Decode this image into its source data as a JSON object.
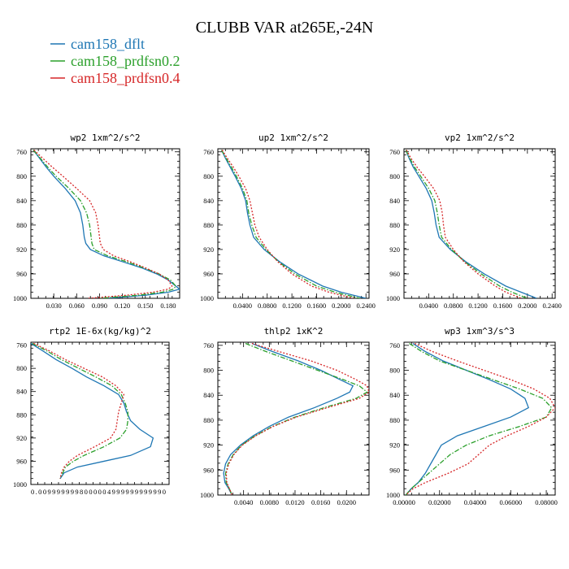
{
  "figure_title": "CLUBB VAR at265E,-24N",
  "legend": [
    {
      "label": "cam158_dflt",
      "color": "#1f77b4",
      "dash": "solid"
    },
    {
      "label": "cam158_prdfsn0.2",
      "color": "#2ca02c",
      "dash": "dashdot"
    },
    {
      "label": "cam158_prdfsn0.4",
      "color": "#d62728",
      "dash": "dot"
    }
  ],
  "chart_data": [
    {
      "type": "line",
      "title": "wp2  1xm^2/s^2",
      "xlabel": "",
      "ylabel": "",
      "xlim": [
        0.0,
        0.195
      ],
      "ylim": [
        755,
        1000
      ],
      "xticks": [
        0.03,
        0.06,
        0.09,
        0.12,
        0.15,
        0.18
      ],
      "xtick_labels": [
        "0.030",
        "0.060",
        "0.090",
        "0.120",
        "0.150",
        "0.180"
      ],
      "yticks": [
        760,
        800,
        840,
        880,
        920,
        960,
        1000
      ],
      "y": [
        757,
        770,
        785,
        800,
        820,
        840,
        860,
        880,
        900,
        910,
        920,
        930,
        940,
        950,
        960,
        970,
        980,
        985,
        990,
        995,
        1000
      ],
      "series": [
        {
          "name": "cam158_dflt",
          "x": [
            0.003,
            0.011,
            0.02,
            0.03,
            0.045,
            0.058,
            0.065,
            0.068,
            0.07,
            0.072,
            0.078,
            0.095,
            0.12,
            0.145,
            0.165,
            0.18,
            0.19,
            0.195,
            0.18,
            0.15,
            0.1
          ]
        },
        {
          "name": "cam158_prdfsn0.2",
          "x": [
            0.003,
            0.012,
            0.022,
            0.033,
            0.05,
            0.065,
            0.073,
            0.077,
            0.079,
            0.08,
            0.083,
            0.1,
            0.125,
            0.148,
            0.168,
            0.183,
            0.19,
            0.187,
            0.172,
            0.14,
            0.09
          ]
        },
        {
          "name": "cam158_prdfsn0.4",
          "x": [
            0.004,
            0.015,
            0.028,
            0.042,
            0.06,
            0.077,
            0.085,
            0.088,
            0.09,
            0.091,
            0.095,
            0.108,
            0.13,
            0.15,
            0.168,
            0.18,
            0.185,
            0.18,
            0.16,
            0.125,
            0.075
          ]
        }
      ]
    },
    {
      "type": "line",
      "title": "up2  1xm^2/s^2",
      "xlabel": "",
      "ylabel": "",
      "xlim": [
        0.0,
        0.245
      ],
      "ylim": [
        755,
        1000
      ],
      "xticks": [
        0.04,
        0.08,
        0.12,
        0.16,
        0.2,
        0.24
      ],
      "xtick_labels": [
        "0.0400",
        "0.0800",
        "0.1200",
        "0.1600",
        "0.2000",
        "0.2400"
      ],
      "yticks": [
        760,
        800,
        840,
        880,
        920,
        960,
        1000
      ],
      "y": [
        757,
        770,
        785,
        800,
        820,
        840,
        860,
        880,
        900,
        920,
        940,
        960,
        980,
        990,
        1000
      ],
      "series": [
        {
          "name": "cam158_dflt",
          "x": [
            0.006,
            0.012,
            0.02,
            0.028,
            0.038,
            0.045,
            0.048,
            0.052,
            0.058,
            0.075,
            0.1,
            0.13,
            0.17,
            0.2,
            0.24
          ]
        },
        {
          "name": "cam158_prdfsn0.2",
          "x": [
            0.006,
            0.013,
            0.022,
            0.03,
            0.04,
            0.047,
            0.05,
            0.055,
            0.062,
            0.078,
            0.098,
            0.125,
            0.16,
            0.19,
            0.23
          ]
        },
        {
          "name": "cam158_prdfsn0.4",
          "x": [
            0.007,
            0.015,
            0.025,
            0.034,
            0.045,
            0.052,
            0.056,
            0.06,
            0.067,
            0.08,
            0.097,
            0.12,
            0.152,
            0.18,
            0.22
          ]
        }
      ]
    },
    {
      "type": "line",
      "title": "vp2  1xm^2/s^2",
      "xlabel": "",
      "ylabel": "",
      "xlim": [
        0.0,
        0.245
      ],
      "ylim": [
        755,
        1000
      ],
      "xticks": [
        0.04,
        0.08,
        0.12,
        0.16,
        0.2,
        0.24
      ],
      "xtick_labels": [
        "0.0400",
        "0.0800",
        "0.1200",
        "0.1600",
        "0.2000",
        "0.2400"
      ],
      "yticks": [
        760,
        800,
        840,
        880,
        920,
        960,
        1000
      ],
      "y": [
        757,
        770,
        785,
        800,
        820,
        840,
        860,
        880,
        900,
        920,
        940,
        960,
        980,
        990,
        1000
      ],
      "series": [
        {
          "name": "cam158_dflt",
          "x": [
            0.003,
            0.008,
            0.015,
            0.024,
            0.036,
            0.045,
            0.049,
            0.052,
            0.057,
            0.075,
            0.1,
            0.13,
            0.165,
            0.19,
            0.215
          ]
        },
        {
          "name": "cam158_prdfsn0.2",
          "x": [
            0.003,
            0.009,
            0.017,
            0.027,
            0.04,
            0.05,
            0.054,
            0.057,
            0.061,
            0.077,
            0.098,
            0.125,
            0.155,
            0.175,
            0.2
          ]
        },
        {
          "name": "cam158_prdfsn0.4",
          "x": [
            0.004,
            0.011,
            0.021,
            0.033,
            0.048,
            0.058,
            0.062,
            0.064,
            0.067,
            0.08,
            0.097,
            0.12,
            0.148,
            0.165,
            0.19
          ]
        }
      ]
    },
    {
      "type": "line",
      "title": "rtp2  1E-6x(kg/kg)^2",
      "xlabel": "",
      "ylabel": "",
      "xlim": [
        0.009999,
        0.01000004
      ],
      "ylim": [
        755,
        1000
      ],
      "xticks": [
        0.009999
      ],
      "xtick_labels": [
        "0.0099999998000004999999999990"
      ],
      "yticks": [
        760,
        800,
        840,
        880,
        920,
        960,
        1000
      ],
      "y": [
        757,
        770,
        785,
        800,
        815,
        830,
        845,
        860,
        875,
        890,
        905,
        920,
        935,
        950,
        960,
        970,
        980,
        990
      ],
      "series": [
        {
          "name": "cam158_dflt",
          "x": [
            0.009999,
            0.00999909,
            0.00999919,
            0.00999931,
            0.00999942,
            0.00999955,
            0.00999966,
            0.0099997,
            0.00999972,
            0.00999975,
            0.00999982,
            0.00999992,
            0.0099999,
            0.00999975,
            0.00999955,
            0.00999935,
            0.00999925,
            0.00999922
          ]
        },
        {
          "name": "cam158_prdfsn0.2",
          "x": [
            0.00999901,
            0.00999912,
            0.00999923,
            0.00999936,
            0.00999949,
            0.00999961,
            0.00999968,
            0.00999971,
            0.00999973,
            0.00999973,
            0.00999972,
            0.00999967,
            0.00999955,
            0.0099994,
            0.00999932,
            0.00999926,
            0.00999924,
            0.00999922
          ]
        },
        {
          "name": "cam158_prdfsn0.4",
          "x": [
            0.00999902,
            0.00999914,
            0.00999926,
            0.0099994,
            0.00999954,
            0.00999964,
            0.0099997,
            0.00999968,
            0.00999966,
            0.00999965,
            0.00999964,
            0.0099996,
            0.00999948,
            0.00999935,
            0.00999929,
            0.00999925,
            0.00999923,
            0.00999922
          ]
        }
      ]
    },
    {
      "type": "line",
      "title": "thlp2  1xK^2",
      "xlabel": "",
      "ylabel": "",
      "xlim": [
        0.0,
        0.0235
      ],
      "ylim": [
        755,
        1000
      ],
      "xticks": [
        0.004,
        0.008,
        0.012,
        0.016,
        0.02
      ],
      "xtick_labels": [
        "0.0040",
        "0.0080",
        "0.0120",
        "0.0160",
        "0.0200"
      ],
      "yticks": [
        760,
        800,
        840,
        880,
        920,
        960,
        1000
      ],
      "y": [
        757,
        770,
        785,
        800,
        815,
        825,
        835,
        845,
        860,
        875,
        890,
        905,
        920,
        935,
        950,
        965,
        980,
        990,
        1000
      ],
      "series": [
        {
          "name": "cam158_dflt",
          "x": [
            0.0053,
            0.0085,
            0.0125,
            0.016,
            0.019,
            0.021,
            0.0205,
            0.0185,
            0.015,
            0.011,
            0.008,
            0.0055,
            0.0035,
            0.002,
            0.0012,
            0.0009,
            0.0011,
            0.0017,
            0.0022
          ]
        },
        {
          "name": "cam158_prdfsn0.2",
          "x": [
            0.0043,
            0.0075,
            0.0115,
            0.0155,
            0.0195,
            0.022,
            0.0232,
            0.0215,
            0.0165,
            0.012,
            0.0085,
            0.0058,
            0.0037,
            0.0024,
            0.0016,
            0.0012,
            0.0013,
            0.0018,
            0.0022
          ]
        },
        {
          "name": "cam158_prdfsn0.4",
          "x": [
            0.0053,
            0.0095,
            0.0145,
            0.0185,
            0.0215,
            0.0232,
            0.0235,
            0.022,
            0.017,
            0.0122,
            0.0086,
            0.0059,
            0.0038,
            0.0025,
            0.0017,
            0.0013,
            0.0014,
            0.0018,
            0.0022
          ]
        }
      ]
    },
    {
      "type": "line",
      "title": "wp3  1xm^3/s^3",
      "xlabel": "",
      "ylabel": "",
      "xlim": [
        0.0,
        0.085
      ],
      "ylim": [
        755,
        1000
      ],
      "xticks": [
        0.0,
        0.02,
        0.04,
        0.06,
        0.08
      ],
      "xtick_labels": [
        "0.00000",
        "0.02000",
        "0.04000",
        "0.06000",
        "0.08000"
      ],
      "yticks": [
        760,
        800,
        840,
        880,
        920,
        960,
        1000
      ],
      "y": [
        757,
        770,
        785,
        800,
        815,
        830,
        845,
        860,
        875,
        890,
        905,
        920,
        935,
        950,
        965,
        980,
        990,
        1000
      ],
      "series": [
        {
          "name": "cam158_dflt",
          "x": [
            0.005,
            0.012,
            0.022,
            0.035,
            0.048,
            0.06,
            0.068,
            0.07,
            0.06,
            0.045,
            0.03,
            0.021,
            0.018,
            0.015,
            0.012,
            0.008,
            0.004,
            0.001
          ]
        },
        {
          "name": "cam158_prdfsn0.2",
          "x": [
            0.003,
            0.01,
            0.02,
            0.035,
            0.05,
            0.065,
            0.078,
            0.083,
            0.08,
            0.065,
            0.048,
            0.035,
            0.026,
            0.02,
            0.014,
            0.008,
            0.004,
            0.001
          ]
        },
        {
          "name": "cam158_prdfsn0.4",
          "x": [
            0.006,
            0.016,
            0.03,
            0.045,
            0.06,
            0.073,
            0.082,
            0.085,
            0.08,
            0.07,
            0.058,
            0.048,
            0.042,
            0.036,
            0.025,
            0.012,
            0.005,
            0.001
          ]
        }
      ]
    }
  ]
}
